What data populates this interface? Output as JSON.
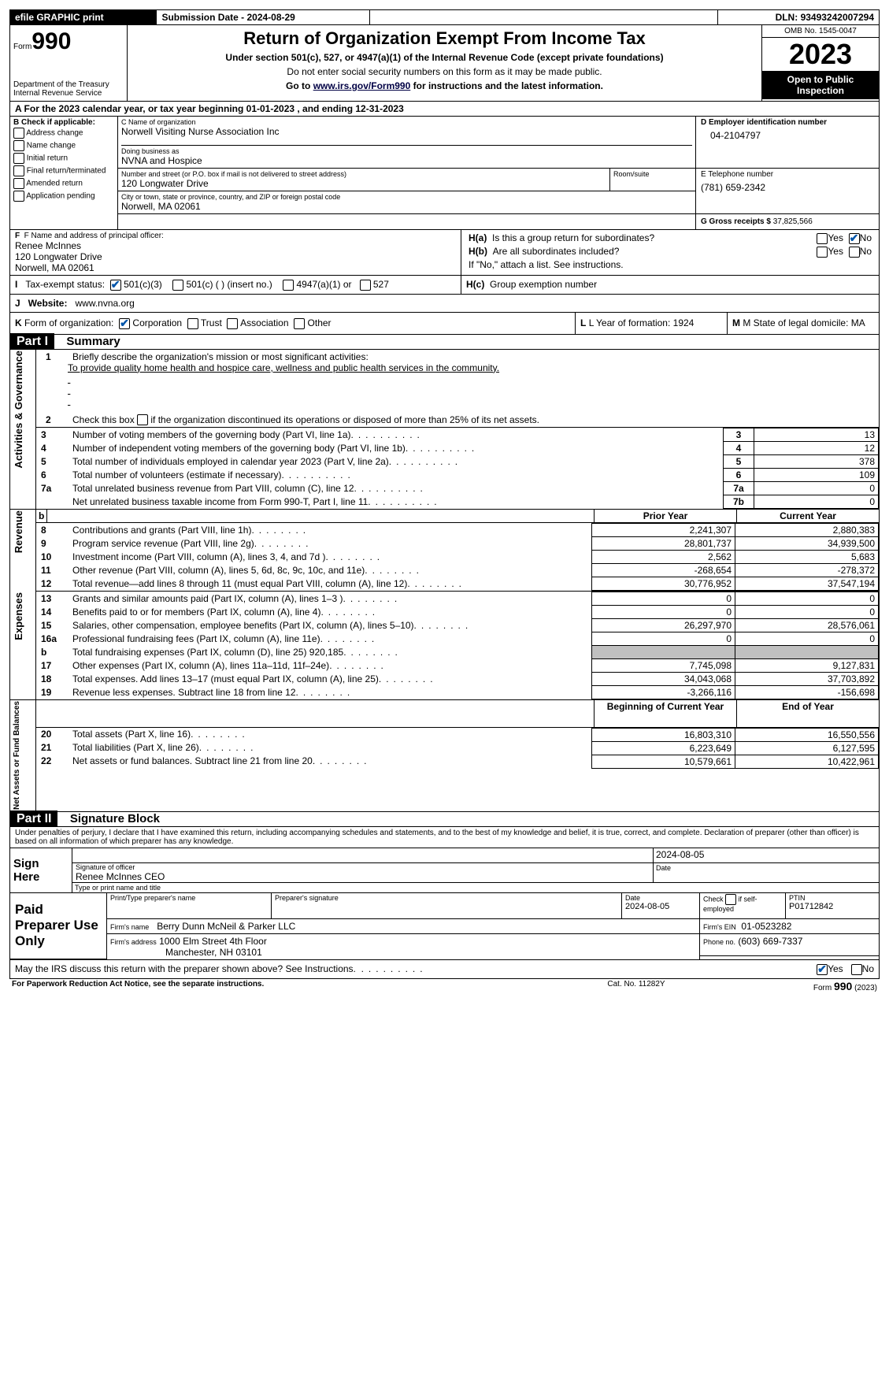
{
  "topbar": {
    "efile": "efile GRAPHIC print",
    "submit_label": "Submission Date - ",
    "submit_date": "2024-08-29",
    "dln_label": "DLN: ",
    "dln": "93493242007294"
  },
  "header": {
    "form_word": "Form",
    "form_no": "990",
    "dept1": "Department of the Treasury",
    "dept2": "Internal Revenue Service",
    "title": "Return of Organization Exempt From Income Tax",
    "sub1": "Under section 501(c), 527, or 4947(a)(1) of the Internal Revenue Code (except private foundations)",
    "sub2": "Do not enter social security numbers on this form as it may be made public.",
    "sub3_pre": "Go to ",
    "sub3_link": "www.irs.gov/Form990",
    "sub3_post": " for instructions and the latest information.",
    "omb": "OMB No. 1545-0047",
    "year": "2023",
    "open": "Open to Public Inspection"
  },
  "A": {
    "line": "A For the 2023 calendar year, or tax year beginning 01-01-2023   , and ending 12-31-2023"
  },
  "B": {
    "title": "B Check if applicable:",
    "opts": [
      "Address change",
      "Name change",
      "Initial return",
      "Final return/terminated",
      "Amended return",
      "Application pending"
    ]
  },
  "C": {
    "name_label": "C Name of organization",
    "name": "Norwell Visiting Nurse Association Inc",
    "dba_label": "Doing business as",
    "dba": "NVNA and Hospice",
    "street_label": "Number and street (or P.O. box if mail is not delivered to street address)",
    "room_label": "Room/suite",
    "street": "120 Longwater Drive",
    "city_label": "City or town, state or province, country, and ZIP or foreign postal code",
    "city": "Norwell, MA  02061"
  },
  "D": {
    "label": "D Employer identification number",
    "val": "04-2104797"
  },
  "E": {
    "label": "E Telephone number",
    "val": "(781) 659-2342"
  },
  "G": {
    "label": "G Gross receipts $ ",
    "val": "37,825,566"
  },
  "F": {
    "label": "F  Name and address of principal officer:",
    "name": "Renee McInnes",
    "street": "120 Longwater Drive",
    "city": "Norwell, MA  02061"
  },
  "H": {
    "a": "H(a)  Is this a group return for subordinates?",
    "b": "H(b)  Are all subordinates included?",
    "bnote": "If \"No,\" attach a list. See instructions.",
    "c": "H(c)  Group exemption number",
    "yes": "Yes",
    "no": "No"
  },
  "I": {
    "label": "I   Tax-exempt status:",
    "o1": "501(c)(3)",
    "o2": "501(c) (  ) (insert no.)",
    "o3": "4947(a)(1) or",
    "o4": "527"
  },
  "J": {
    "label": "J   Website:",
    "val": "www.nvna.org"
  },
  "K": {
    "label": "K Form of organization:",
    "o1": "Corporation",
    "o2": "Trust",
    "o3": "Association",
    "o4": "Other"
  },
  "L": {
    "label": "L Year of formation: ",
    "val": "1924"
  },
  "M": {
    "label": "M State of legal domicile: ",
    "val": "MA"
  },
  "part1": {
    "title": "Part I",
    "name": "Summary"
  },
  "sum": {
    "l1a": "Briefly describe the organization's mission or most significant activities:",
    "l1b": "To provide quality home health and hospice care, wellness and public health services in the community.",
    "l2": "Check this box    if the organization discontinued its operations or disposed of more than 25% of its net assets.",
    "rows_top": [
      {
        "n": "3",
        "t": "Number of voting members of the governing body (Part VI, line 1a)",
        "box": "3",
        "v": "13"
      },
      {
        "n": "4",
        "t": "Number of independent voting members of the governing body (Part VI, line 1b)",
        "box": "4",
        "v": "12"
      },
      {
        "n": "5",
        "t": "Total number of individuals employed in calendar year 2023 (Part V, line 2a)",
        "box": "5",
        "v": "378"
      },
      {
        "n": "6",
        "t": "Total number of volunteers (estimate if necessary)",
        "box": "6",
        "v": "109"
      },
      {
        "n": "7a",
        "t": "Total unrelated business revenue from Part VIII, column (C), line 12",
        "box": "7a",
        "v": "0"
      },
      {
        "n": "",
        "t": "Net unrelated business taxable income from Form 990-T, Part I, line 11",
        "box": "7b",
        "v": "0"
      }
    ],
    "hdr_prior": "Prior Year",
    "hdr_curr": "Current Year",
    "hdr_boy": "Beginning of Current Year",
    "hdr_eoy": "End of Year",
    "rev": [
      {
        "n": "8",
        "t": "Contributions and grants (Part VIII, line 1h)",
        "p": "2,241,307",
        "c": "2,880,383"
      },
      {
        "n": "9",
        "t": "Program service revenue (Part VIII, line 2g)",
        "p": "28,801,737",
        "c": "34,939,500"
      },
      {
        "n": "10",
        "t": "Investment income (Part VIII, column (A), lines 3, 4, and 7d )",
        "p": "2,562",
        "c": "5,683"
      },
      {
        "n": "11",
        "t": "Other revenue (Part VIII, column (A), lines 5, 6d, 8c, 9c, 10c, and 11e)",
        "p": "-268,654",
        "c": "-278,372"
      },
      {
        "n": "12",
        "t": "Total revenue—add lines 8 through 11 (must equal Part VIII, column (A), line 12)",
        "p": "30,776,952",
        "c": "37,547,194"
      }
    ],
    "exp": [
      {
        "n": "13",
        "t": "Grants and similar amounts paid (Part IX, column (A), lines 1–3 )",
        "p": "0",
        "c": "0"
      },
      {
        "n": "14",
        "t": "Benefits paid to or for members (Part IX, column (A), line 4)",
        "p": "0",
        "c": "0"
      },
      {
        "n": "15",
        "t": "Salaries, other compensation, employee benefits (Part IX, column (A), lines 5–10)",
        "p": "26,297,970",
        "c": "28,576,061"
      },
      {
        "n": "16a",
        "t": "Professional fundraising fees (Part IX, column (A), line 11e)",
        "p": "0",
        "c": "0"
      },
      {
        "n": "b",
        "t": "Total fundraising expenses (Part IX, column (D), line 25) 920,185",
        "p": "GRAY",
        "c": "GRAY"
      },
      {
        "n": "17",
        "t": "Other expenses (Part IX, column (A), lines 11a–11d, 11f–24e)",
        "p": "7,745,098",
        "c": "9,127,831"
      },
      {
        "n": "18",
        "t": "Total expenses. Add lines 13–17 (must equal Part IX, column (A), line 25)",
        "p": "34,043,068",
        "c": "37,703,892"
      },
      {
        "n": "19",
        "t": "Revenue less expenses. Subtract line 18 from line 12",
        "p": "-3,266,116",
        "c": "-156,698"
      }
    ],
    "net": [
      {
        "n": "20",
        "t": "Total assets (Part X, line 16)",
        "p": "16,803,310",
        "c": "16,550,556"
      },
      {
        "n": "21",
        "t": "Total liabilities (Part X, line 26)",
        "p": "6,223,649",
        "c": "6,127,595"
      },
      {
        "n": "22",
        "t": "Net assets or fund balances. Subtract line 21 from line 20",
        "p": "10,579,661",
        "c": "10,422,961"
      }
    ],
    "v_gov": "Activities & Governance",
    "v_rev": "Revenue",
    "v_exp": "Expenses",
    "v_net": "Net Assets or Fund Balances"
  },
  "part2": {
    "title": "Part II",
    "name": "Signature Block"
  },
  "sig": {
    "perjury": "Under penalties of perjury, I declare that I have examined this return, including accompanying schedules and statements, and to the best of my knowledge and belief, it is true, correct, and complete. Declaration of preparer (other than officer) is based on all information of which preparer has any knowledge.",
    "sign_here": "Sign Here",
    "sig_off": "Signature of officer",
    "date": "Date",
    "off_name": "Renee McInnes CEO",
    "type_name": "Type or print name and title",
    "sig_date": "2024-08-05",
    "paid": "Paid Preparer Use Only",
    "pname_label": "Print/Type preparer's name",
    "psig_label": "Preparer's signature",
    "pdate_label": "Date",
    "pdate": "2024-08-05",
    "pself": "Check        if self-employed",
    "ptin_label": "PTIN",
    "ptin": "P01712842",
    "firm_name_l": "Firm's name",
    "firm_name": "Berry Dunn McNeil & Parker LLC",
    "firm_ein_l": "Firm's EIN",
    "firm_ein": "01-0523282",
    "firm_addr_l": "Firm's address",
    "firm_addr1": "1000 Elm Street 4th Floor",
    "firm_addr2": "Manchester, NH  03101",
    "phone_l": "Phone no.",
    "phone": "(603) 669-7337",
    "may": "May the IRS discuss this return with the preparer shown above? See Instructions.",
    "yes": "Yes",
    "no": "No"
  },
  "footer": {
    "left": "For Paperwork Reduction Act Notice, see the separate instructions.",
    "mid": "Cat. No. 11282Y",
    "right": "Form 990 (2023)"
  }
}
